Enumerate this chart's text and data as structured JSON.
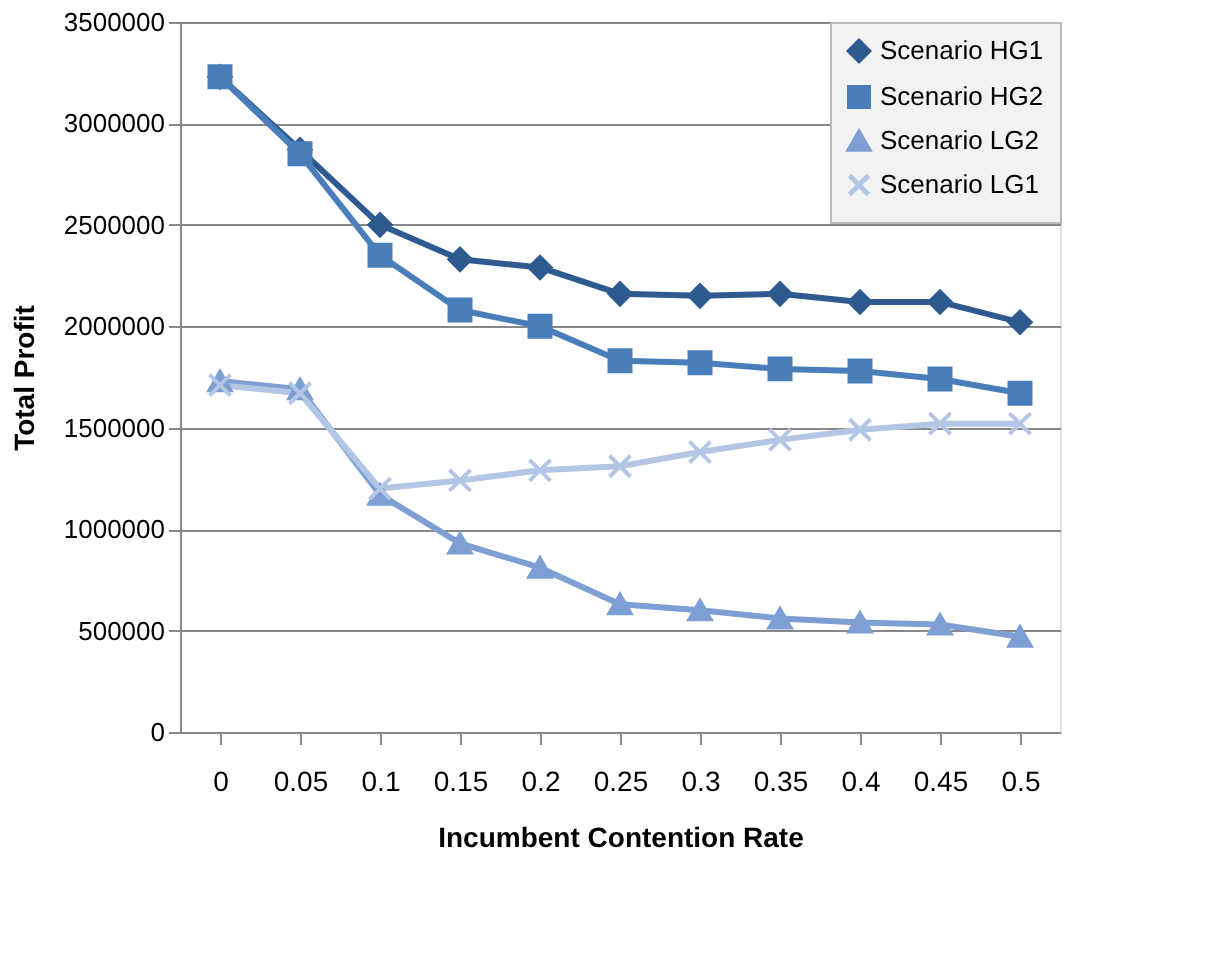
{
  "chart_data": {
    "type": "line",
    "xlabel": "Incumbent Contention Rate",
    "ylabel": "Total Profit",
    "categories": [
      "0",
      "0.05",
      "0.1",
      "0.15",
      "0.2",
      "0.25",
      "0.3",
      "0.35",
      "0.4",
      "0.45",
      "0.5"
    ],
    "ylim": [
      0,
      3500000
    ],
    "yticks": [
      0,
      500000,
      1000000,
      1500000,
      2000000,
      2500000,
      3000000,
      3500000
    ],
    "grid": "y",
    "legend": "top right",
    "line_style": "solid",
    "series": [
      {
        "name": "Scenario HG1",
        "color": "#2e5a8f",
        "marker": "diamond",
        "values": [
          3230000,
          2870000,
          2500000,
          2330000,
          2290000,
          2160000,
          2150000,
          2160000,
          2120000,
          2120000,
          2020000
        ]
      },
      {
        "name": "Scenario HG2",
        "color": "#4a7ebb",
        "marker": "square",
        "values": [
          3230000,
          2850000,
          2350000,
          2080000,
          2000000,
          1830000,
          1820000,
          1790000,
          1780000,
          1740000,
          1670000
        ]
      },
      {
        "name": "Scenario LG2",
        "color": "#7d9fd3",
        "marker": "triangle",
        "values": [
          1730000,
          1690000,
          1170000,
          930000,
          810000,
          630000,
          600000,
          560000,
          540000,
          530000,
          470000
        ]
      },
      {
        "name": "Scenario LG1",
        "color": "#b3c6e5",
        "marker": "cross",
        "values": [
          1710000,
          1670000,
          1200000,
          1240000,
          1290000,
          1310000,
          1380000,
          1440000,
          1490000,
          1520000,
          1520000
        ]
      }
    ]
  }
}
